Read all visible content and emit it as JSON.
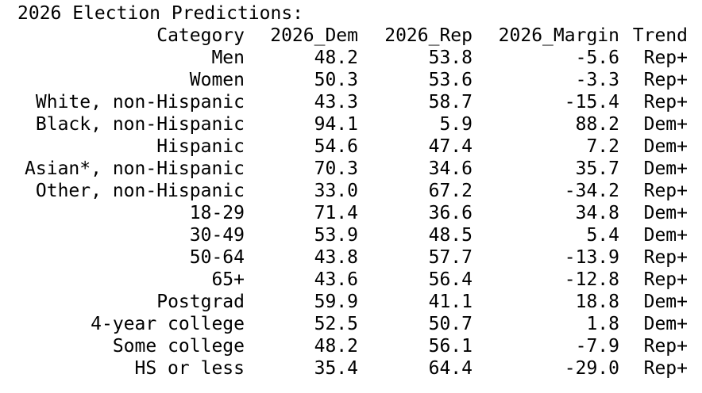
{
  "title": "2026 Election Predictions:",
  "columns": [
    "Category",
    "2026_Dem",
    "2026_Rep",
    "2026_Margin",
    "Trend"
  ],
  "rows": [
    [
      "Men",
      "48.2",
      "53.8",
      "-5.6",
      "Rep+"
    ],
    [
      "Women",
      "50.3",
      "53.6",
      "-3.3",
      "Rep+"
    ],
    [
      "White, non-Hispanic",
      "43.3",
      "58.7",
      "-15.4",
      "Rep+"
    ],
    [
      "Black, non-Hispanic",
      "94.1",
      "5.9",
      "88.2",
      "Dem+"
    ],
    [
      "Hispanic",
      "54.6",
      "47.4",
      "7.2",
      "Dem+"
    ],
    [
      "Asian*, non-Hispanic",
      "70.3",
      "34.6",
      "35.7",
      "Dem+"
    ],
    [
      "Other, non-Hispanic",
      "33.0",
      "67.2",
      "-34.2",
      "Rep+"
    ],
    [
      "18-29",
      "71.4",
      "36.6",
      "34.8",
      "Dem+"
    ],
    [
      "30-49",
      "53.9",
      "48.5",
      "5.4",
      "Dem+"
    ],
    [
      "50-64",
      "43.8",
      "57.7",
      "-13.9",
      "Rep+"
    ],
    [
      "65+",
      "43.6",
      "56.4",
      "-12.8",
      "Rep+"
    ],
    [
      "Postgrad",
      "59.9",
      "41.1",
      "18.8",
      "Dem+"
    ],
    [
      "4-year college",
      "52.5",
      "50.7",
      "1.8",
      "Dem+"
    ],
    [
      "Some college",
      "48.2",
      "56.1",
      "-7.9",
      "Rep+"
    ],
    [
      "HS or less",
      "35.4",
      "64.4",
      "-29.0",
      "Rep+"
    ]
  ]
}
